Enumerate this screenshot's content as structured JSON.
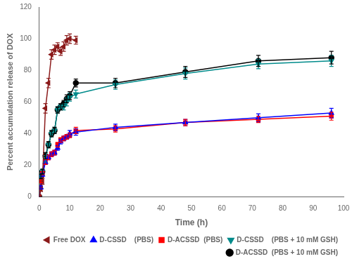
{
  "chart_data": {
    "type": "line",
    "xlabel": "Time (h)",
    "ylabel": "Percent accumulation release of DOX",
    "xlim": [
      0,
      100
    ],
    "ylim": [
      0,
      120
    ],
    "xticks": [
      0,
      10,
      20,
      30,
      40,
      50,
      60,
      70,
      80,
      90,
      100
    ],
    "yticks": [
      0,
      20,
      40,
      60,
      80,
      100,
      120
    ],
    "grid": false,
    "legend": "lower right",
    "series": [
      {
        "name": "Free DOX",
        "color": "#8B1A1A",
        "marker": "triangle-left",
        "line_style": "solid",
        "x": [
          0,
          0.5,
          1,
          2,
          3,
          4,
          5,
          6,
          7,
          8,
          9,
          10,
          12
        ],
        "values": [
          0,
          5,
          10,
          56,
          72,
          90,
          93,
          95,
          92,
          95,
          99,
          100,
          99
        ],
        "errors": [
          0,
          1.5,
          2,
          3,
          3,
          3,
          3,
          2.5,
          2.5,
          3,
          3,
          3,
          2.5
        ]
      },
      {
        "name": "D-CSSD    (PBS)",
        "color": "#0000FF",
        "marker": "triangle-up",
        "line_style": "solid",
        "x": [
          0,
          0.5,
          1,
          2,
          3,
          4,
          5,
          6,
          7,
          8,
          9,
          10,
          12,
          25,
          48,
          72,
          96
        ],
        "values": [
          0,
          6,
          14,
          22,
          25,
          27,
          28,
          31,
          35,
          37,
          38,
          40,
          41,
          44,
          47,
          50,
          53
        ],
        "errors": [
          0,
          1,
          1,
          1.5,
          1.5,
          1.5,
          1.5,
          1.5,
          1.5,
          1.5,
          1.5,
          2,
          2,
          2,
          2,
          2.5,
          3
        ]
      },
      {
        "name": "D-ACSSD  (PBS)",
        "color": "#FF0000",
        "marker": "square",
        "line_style": "solid",
        "x": [
          0,
          0.5,
          1,
          2,
          3,
          4,
          5,
          6,
          7,
          8,
          9,
          10,
          12,
          25,
          48,
          72,
          96
        ],
        "values": [
          0,
          10,
          15,
          22,
          25,
          27,
          28,
          33,
          36,
          37,
          38,
          39,
          42,
          43,
          47,
          49,
          51
        ],
        "errors": [
          0,
          1,
          1,
          1.5,
          1.5,
          1.5,
          1.5,
          1.5,
          1.5,
          1.5,
          1.5,
          1.5,
          2,
          2,
          2,
          2,
          2.5
        ]
      },
      {
        "name": "D-CSSD    (PBS + 10 mM GSH)",
        "color": "#008B8B",
        "marker": "triangle-down",
        "line_style": "solid",
        "x": [
          0,
          0.5,
          1,
          2,
          3,
          4,
          5,
          6,
          7,
          8,
          9,
          10,
          12,
          25,
          48,
          72,
          96
        ],
        "values": [
          0,
          13,
          16,
          24,
          33,
          40,
          42,
          55,
          57,
          57,
          60,
          63,
          65,
          71,
          78,
          84,
          86
        ],
        "errors": [
          0,
          1.5,
          1.5,
          2,
          2,
          2,
          2,
          2,
          2,
          2,
          2.5,
          2.5,
          2.5,
          3,
          3.5,
          3,
          3.5
        ]
      },
      {
        "name": "D-ACSSD  (PBS + 10 mM GSH)",
        "color": "#000000",
        "marker": "circle",
        "line_style": "solid",
        "x": [
          0,
          0.5,
          1,
          2,
          3,
          4,
          5,
          6,
          7,
          8,
          9,
          10,
          12,
          25,
          48,
          72,
          96
        ],
        "values": [
          0,
          13,
          16,
          26,
          33,
          40,
          42,
          55,
          57,
          59,
          62,
          64,
          72,
          72,
          79,
          86,
          88
        ],
        "errors": [
          0,
          1.5,
          1.5,
          2,
          2,
          2,
          2,
          2,
          2,
          2,
          2.5,
          2.5,
          2.5,
          3,
          3.5,
          3.5,
          4
        ]
      }
    ]
  }
}
